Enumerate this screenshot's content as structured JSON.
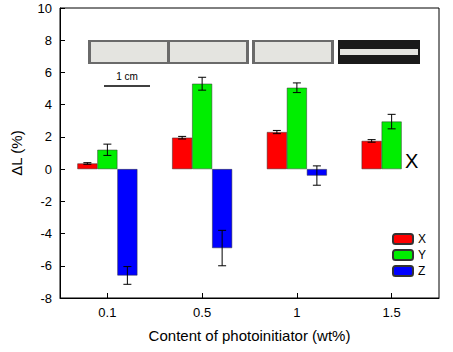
{
  "chart_data": {
    "type": "bar",
    "x_label": "Content of photoinitiator (wt%)",
    "y_label": "ΔL (%)",
    "categories": [
      "0.1",
      "0.5",
      "1",
      "1.5"
    ],
    "series": [
      {
        "name": "X",
        "color": "#ff0000",
        "values": [
          0.35,
          1.95,
          2.3,
          1.75
        ],
        "errors": [
          0.05,
          0.08,
          0.1,
          0.08
        ]
      },
      {
        "name": "Y",
        "color": "#00ee00",
        "values": [
          1.2,
          5.3,
          5.05,
          2.95
        ],
        "errors": [
          0.35,
          0.4,
          0.3,
          0.45
        ]
      },
      {
        "name": "Z",
        "color": "#0000ff",
        "values": [
          -6.6,
          -4.9,
          -0.4,
          null
        ],
        "errors": [
          0.55,
          1.1,
          0.6,
          null
        ]
      }
    ],
    "ylim": [
      -8,
      10
    ],
    "yticks": [
      -8,
      -6,
      -4,
      -2,
      0,
      2,
      4,
      6,
      8,
      10
    ],
    "legend": "lower right",
    "grid": false,
    "annotations": [
      {
        "text": "1 cm"
      },
      {
        "text": "X",
        "category": "1.5",
        "series": "Z"
      }
    ]
  }
}
